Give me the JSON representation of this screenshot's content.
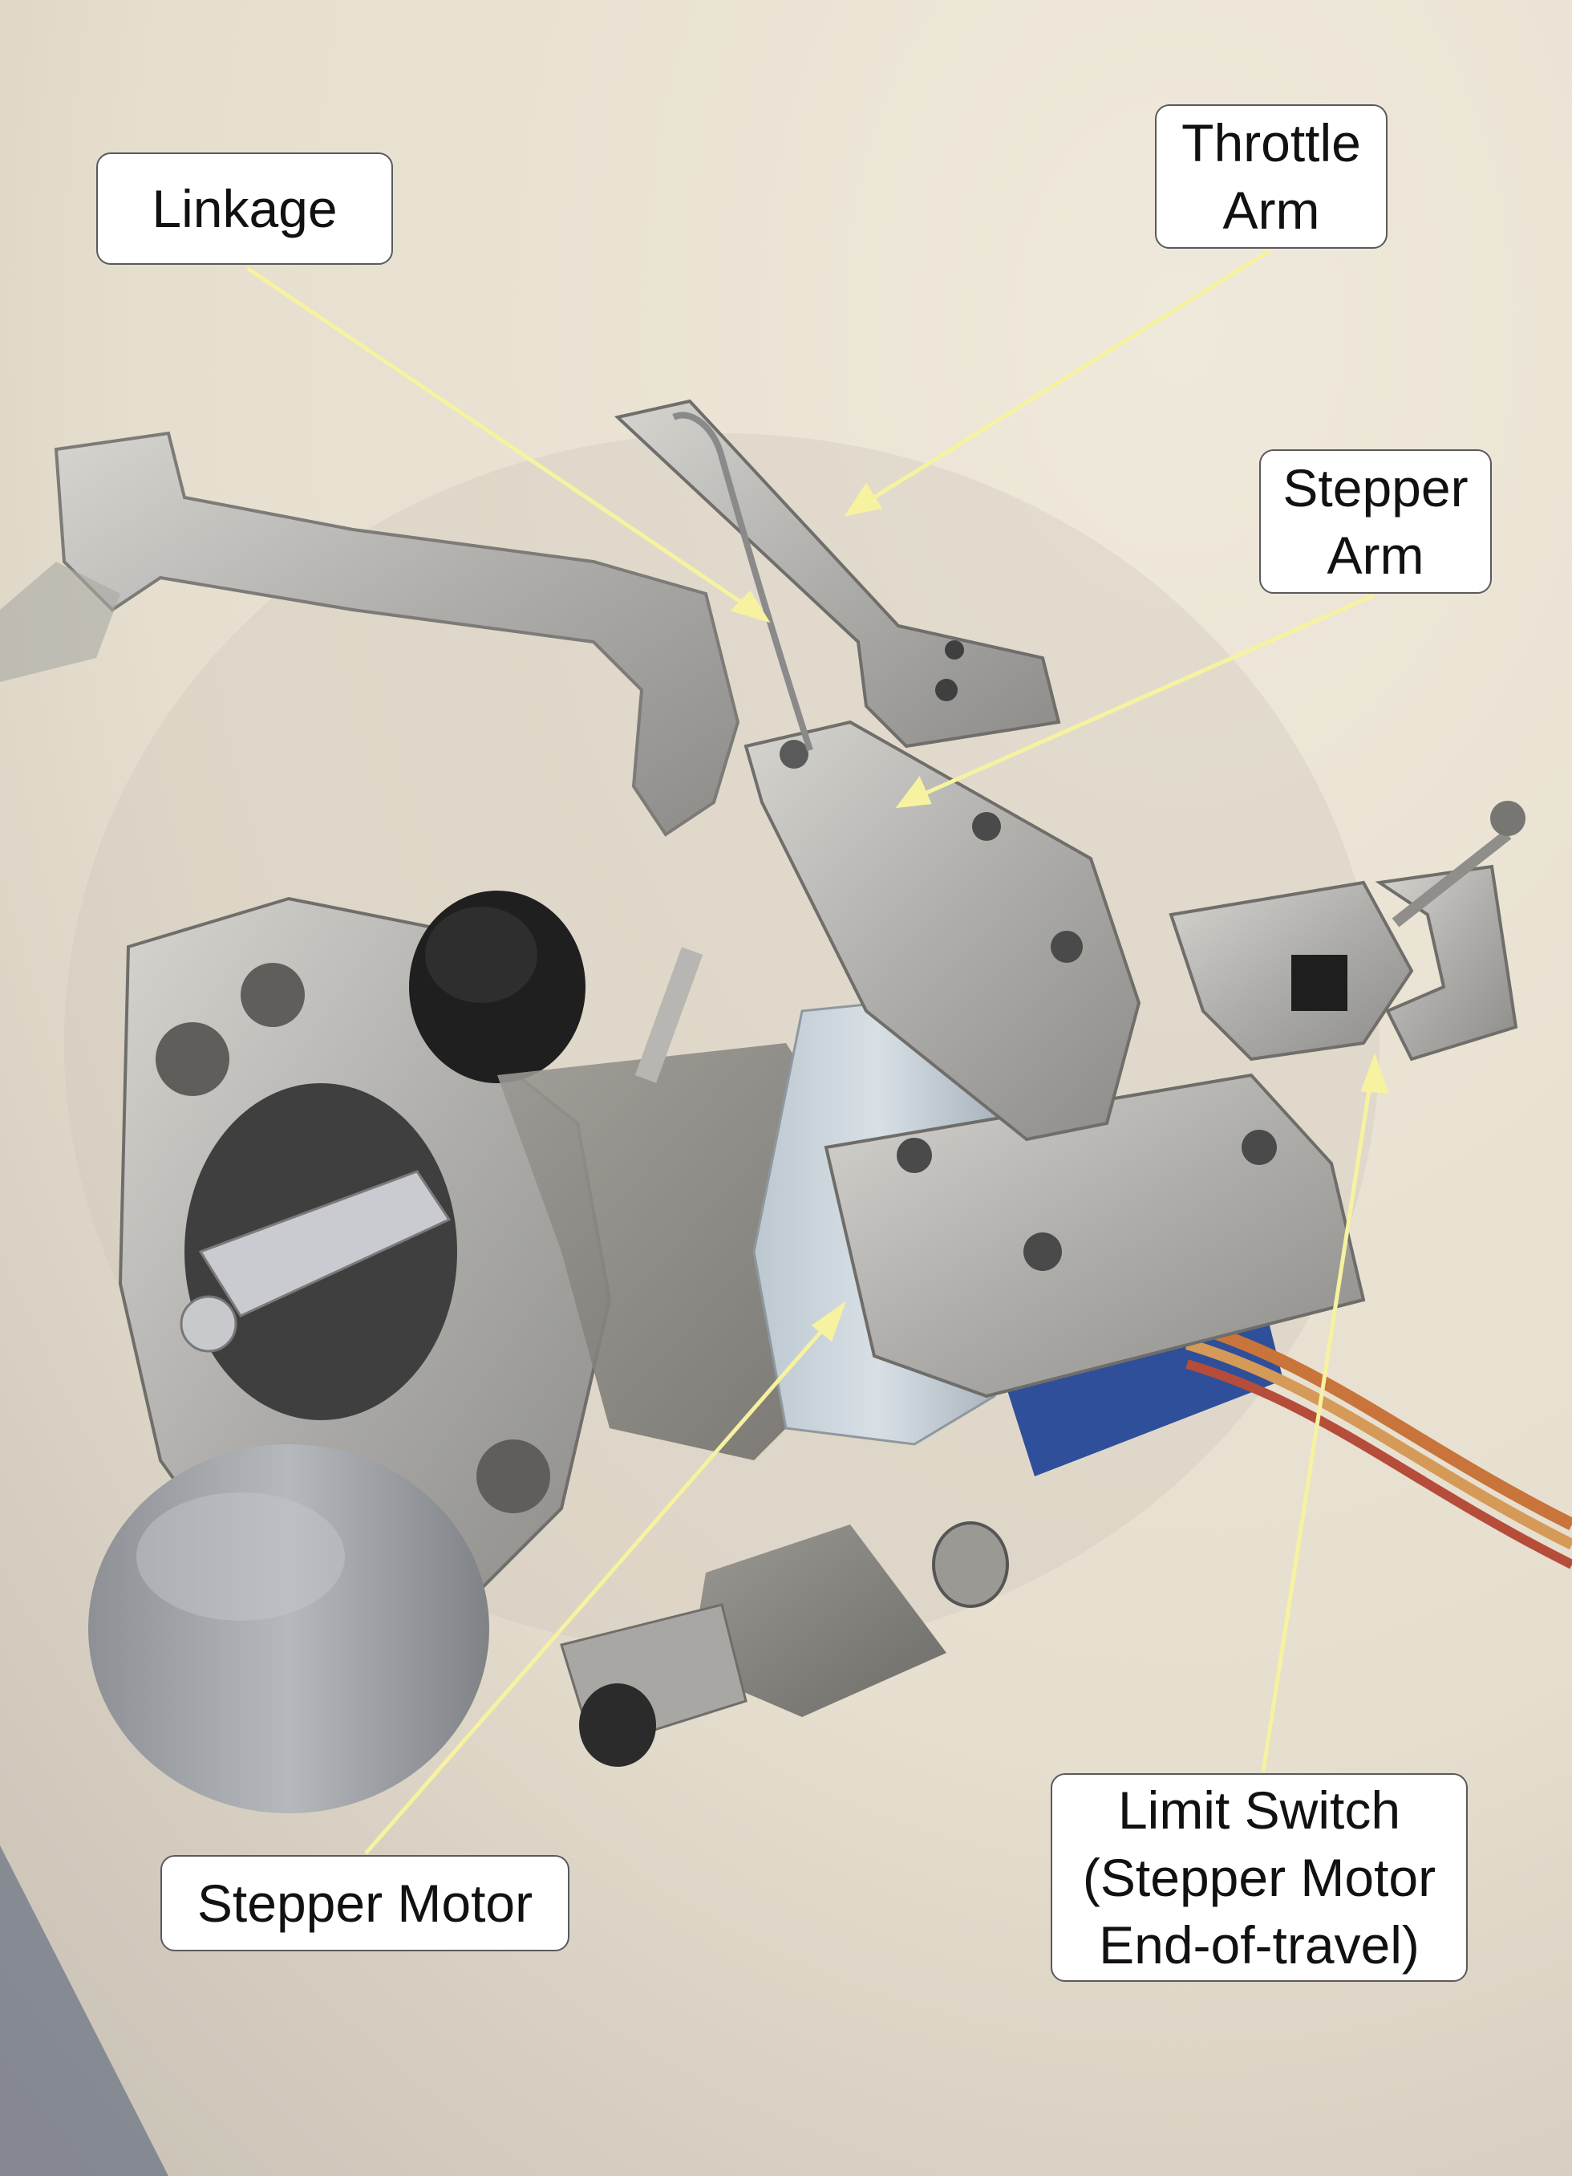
{
  "colors": {
    "background": "#e8e0d0",
    "leader_line": "#f6f2a0",
    "label_fill": "#ffffff",
    "label_border": "#5a5a5a"
  },
  "labels": {
    "linkage": {
      "lines": [
        "Linkage"
      ]
    },
    "throttle_arm": {
      "lines": [
        "Throttle",
        "Arm"
      ]
    },
    "stepper_arm": {
      "lines": [
        "Stepper",
        "Arm"
      ]
    },
    "stepper_motor": {
      "lines": [
        "Stepper Motor"
      ]
    },
    "limit_switch": {
      "lines": [
        "Limit Switch",
        "(Stepper Motor",
        "End-of-travel)"
      ]
    }
  }
}
